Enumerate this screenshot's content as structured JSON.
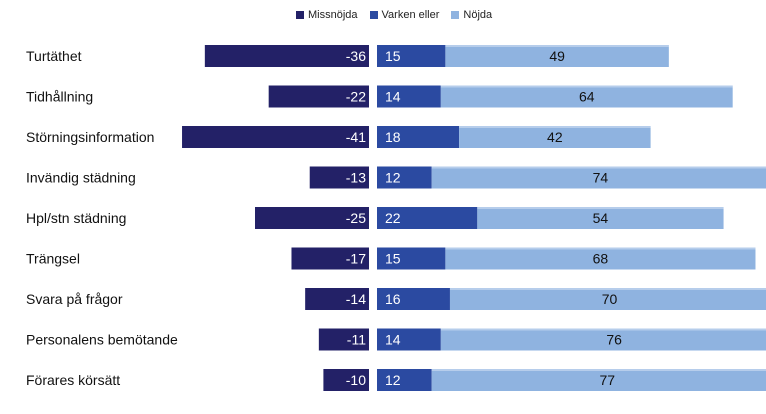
{
  "chart_data": {
    "type": "bar",
    "orientation": "horizontal",
    "stacked": "diverging",
    "title": "",
    "xlabel": "",
    "ylabel": "",
    "categories": [
      "Turtäthet",
      "Tidhållning",
      "Störningsinformation",
      "Invändig städning",
      "Hpl/stn städning",
      "Trängsel",
      "Svara på frågor",
      "Personalens bemötande",
      "Förares körsätt"
    ],
    "series": [
      {
        "name": "Missnöjda",
        "color": "#232167",
        "values": [
          -36,
          -22,
          -41,
          -13,
          -25,
          -17,
          -14,
          -11,
          -10
        ],
        "labels": [
          "-36",
          "-22",
          "-41",
          "-13",
          "-25",
          "-17",
          "-14",
          "-11",
          "-10"
        ]
      },
      {
        "name": "Varken eller",
        "color": "#2b4aa1",
        "values": [
          15,
          14,
          18,
          12,
          22,
          15,
          16,
          14,
          12
        ],
        "labels": [
          "15",
          "14",
          "18",
          "12",
          "22",
          "15",
          "16",
          "14",
          "12"
        ]
      },
      {
        "name": "Nöjda",
        "color": "#8fb3e0",
        "values": [
          49,
          64,
          42,
          74,
          54,
          68,
          70,
          76,
          77
        ],
        "labels": [
          "49",
          "64",
          "42",
          "74",
          "54",
          "68",
          "70",
          "76",
          "77"
        ]
      }
    ],
    "legend": "top-center",
    "grid": false
  }
}
